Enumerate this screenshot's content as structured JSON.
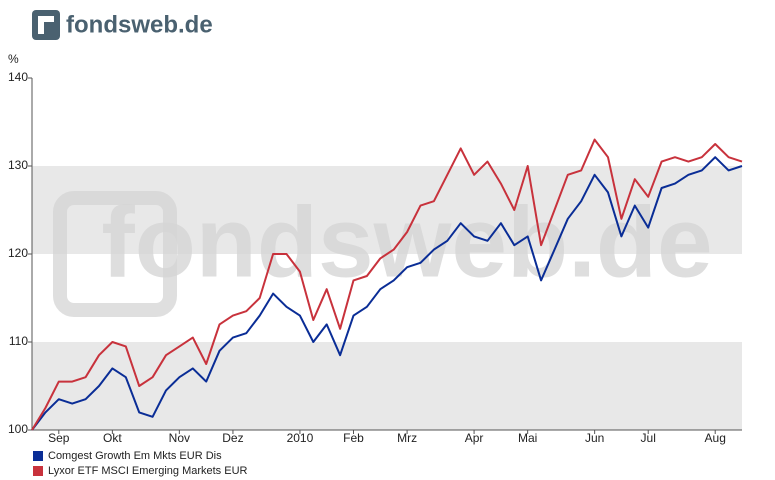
{
  "logo": "fondsweb.de",
  "watermark": "fondsweb.de",
  "chart_data": {
    "type": "line",
    "ylabel": "%",
    "categories": [
      null,
      null,
      "Sep",
      null,
      null,
      null,
      "Okt",
      null,
      null,
      null,
      null,
      "Nov",
      null,
      null,
      null,
      "Dez",
      null,
      null,
      null,
      null,
      "2010",
      null,
      null,
      null,
      "Feb",
      null,
      null,
      null,
      "Mrz",
      null,
      null,
      null,
      null,
      "Apr",
      null,
      null,
      null,
      "Mai",
      null,
      null,
      null,
      null,
      "Jun",
      null,
      null,
      null,
      "Jul",
      null,
      null,
      null,
      null,
      "Aug",
      null,
      null
    ],
    "series": [
      {
        "name": "Comgest Growth Em Mkts EUR Dis",
        "color": "#0a2d96",
        "values": [
          100,
          102,
          103.5,
          103,
          103.5,
          105,
          107,
          106,
          102,
          101.5,
          104.5,
          106,
          107,
          105.5,
          109,
          110.5,
          111,
          113,
          115.5,
          114,
          113,
          110,
          112,
          108.5,
          113,
          114,
          116,
          117,
          118.5,
          119,
          120.5,
          121.5,
          123.5,
          122,
          121.5,
          123.5,
          121,
          122,
          117,
          120.5,
          124,
          126,
          129,
          127,
          122,
          125.5,
          123,
          127.5,
          128,
          129,
          129.5,
          131,
          129.5,
          130
        ]
      },
      {
        "name": "Lyxor ETF MSCI Emerging Markets EUR",
        "color": "#c8323c",
        "values": [
          100,
          102.5,
          105.5,
          105.5,
          106,
          108.5,
          110,
          109.5,
          105,
          106,
          108.5,
          109.5,
          110.5,
          107.5,
          112,
          113,
          113.5,
          115,
          120,
          120,
          118,
          112.5,
          116,
          111.5,
          117,
          117.5,
          119.5,
          120.5,
          122.5,
          125.5,
          126,
          129,
          132,
          129,
          130.5,
          128,
          125,
          130,
          121,
          125,
          129,
          129.5,
          133,
          131,
          124,
          128.5,
          126.5,
          130.5,
          131,
          130.5,
          131,
          132.5,
          131,
          130.5
        ]
      }
    ],
    "ylim": [
      100,
      140
    ],
    "yticks": [
      100,
      110,
      120,
      130,
      140
    ],
    "grid": true
  }
}
